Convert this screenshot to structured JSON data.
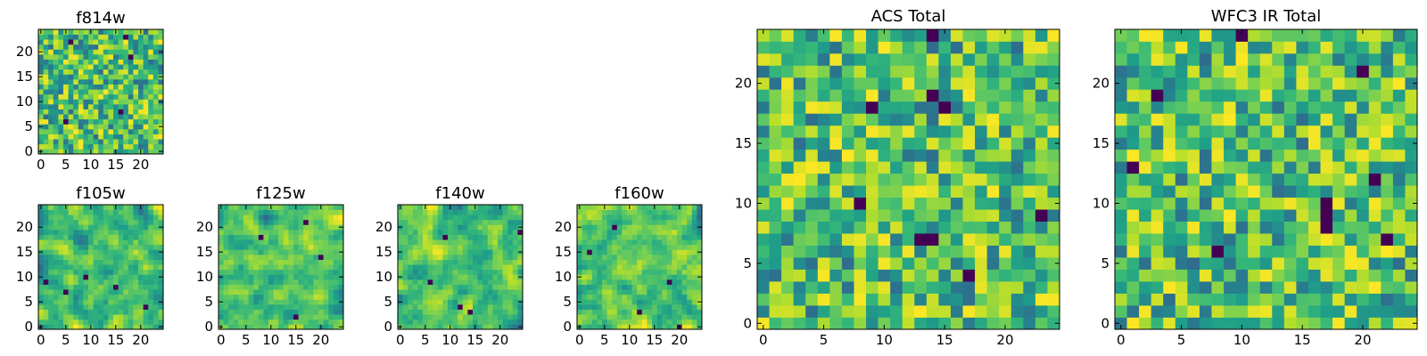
{
  "figure": {
    "background": "#ffffff"
  },
  "chart_data": [
    {
      "type": "heatmap",
      "title": "f814w",
      "grid_size": 25,
      "xticks": [
        0,
        5,
        10,
        15,
        20
      ],
      "yticks": [
        0,
        5,
        10,
        15,
        20
      ],
      "xlim": [
        -0.5,
        24.5
      ],
      "ylim": [
        -0.5,
        24.5
      ],
      "colormap": "viridis",
      "seed": 11,
      "smoothing": 0,
      "dark_pixels": [
        [
          16,
          8
        ],
        [
          17,
          23
        ],
        [
          18,
          19
        ],
        [
          5,
          6
        ],
        [
          6,
          22
        ]
      ]
    },
    {
      "type": "heatmap",
      "title": "f105w",
      "grid_size": 25,
      "xticks": [
        0,
        5,
        10,
        15,
        20
      ],
      "yticks": [
        0,
        5,
        10,
        15,
        20
      ],
      "xlim": [
        -0.5,
        24.5
      ],
      "ylim": [
        -0.5,
        24.5
      ],
      "colormap": "viridis",
      "seed": 23,
      "smoothing": 1,
      "dark_pixels": [
        [
          9,
          10
        ],
        [
          1,
          9
        ],
        [
          5,
          7
        ],
        [
          21,
          4
        ],
        [
          15,
          8
        ]
      ]
    },
    {
      "type": "heatmap",
      "title": "f125w",
      "grid_size": 25,
      "xticks": [
        0,
        5,
        10,
        15,
        20
      ],
      "yticks": [
        0,
        5,
        10,
        15,
        20
      ],
      "xlim": [
        -0.5,
        24.5
      ],
      "ylim": [
        -0.5,
        24.5
      ],
      "colormap": "viridis",
      "seed": 37,
      "smoothing": 1,
      "dark_pixels": [
        [
          17,
          21
        ],
        [
          8,
          18
        ],
        [
          15,
          2
        ],
        [
          20,
          14
        ]
      ]
    },
    {
      "type": "heatmap",
      "title": "f140w",
      "grid_size": 25,
      "xticks": [
        0,
        5,
        10,
        15,
        20
      ],
      "yticks": [
        0,
        5,
        10,
        15,
        20
      ],
      "xlim": [
        -0.5,
        24.5
      ],
      "ylim": [
        -0.5,
        24.5
      ],
      "colormap": "viridis",
      "seed": 41,
      "smoothing": 1,
      "dark_pixels": [
        [
          12,
          4
        ],
        [
          14,
          3
        ],
        [
          9,
          18
        ],
        [
          6,
          9
        ],
        [
          24,
          19
        ]
      ]
    },
    {
      "type": "heatmap",
      "title": "f160w",
      "grid_size": 25,
      "xticks": [
        0,
        5,
        10,
        15,
        20
      ],
      "yticks": [
        0,
        5,
        10,
        15,
        20
      ],
      "xlim": [
        -0.5,
        24.5
      ],
      "ylim": [
        -0.5,
        24.5
      ],
      "colormap": "viridis",
      "seed": 53,
      "smoothing": 1,
      "dark_pixels": [
        [
          20,
          0
        ],
        [
          12,
          3
        ],
        [
          18,
          9
        ],
        [
          7,
          20
        ],
        [
          2,
          15
        ]
      ]
    },
    {
      "type": "heatmap",
      "title": "ACS Total",
      "grid_size": 25,
      "xticks": [
        0,
        5,
        10,
        15,
        20
      ],
      "yticks": [
        0,
        5,
        10,
        15,
        20
      ],
      "xlim": [
        -0.5,
        24.5
      ],
      "ylim": [
        -0.5,
        24.5
      ],
      "colormap": "viridis",
      "seed": 67,
      "smoothing": 0,
      "dark_pixels": [
        [
          13,
          7
        ],
        [
          14,
          7
        ],
        [
          8,
          10
        ],
        [
          17,
          4
        ],
        [
          14,
          19
        ],
        [
          15,
          18
        ],
        [
          9,
          18
        ],
        [
          14,
          24
        ],
        [
          23,
          9
        ]
      ]
    },
    {
      "type": "heatmap",
      "title": "WFC3 IR Total",
      "grid_size": 25,
      "xticks": [
        0,
        5,
        10,
        15,
        20
      ],
      "yticks": [
        0,
        5,
        10,
        15,
        20
      ],
      "xlim": [
        -0.5,
        24.5
      ],
      "ylim": [
        -0.5,
        24.5
      ],
      "colormap": "viridis",
      "seed": 79,
      "smoothing": 0,
      "dark_pixels": [
        [
          3,
          19
        ],
        [
          10,
          24
        ],
        [
          20,
          21
        ],
        [
          17,
          8
        ],
        [
          17,
          9
        ],
        [
          17,
          10
        ],
        [
          8,
          6
        ],
        [
          22,
          7
        ],
        [
          1,
          13
        ],
        [
          21,
          12
        ]
      ]
    }
  ]
}
